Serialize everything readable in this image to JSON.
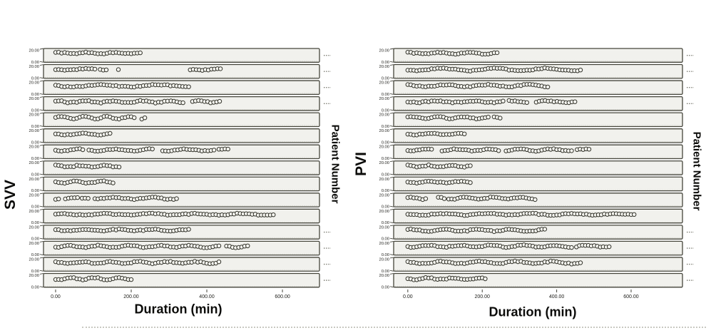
{
  "figure": {
    "background": "#ffffff",
    "description": "Two multi-panel strip plots of SVV and PVI values over anesthesia duration, one panel row per patient"
  },
  "colors": {
    "strip_fill": "#f1f1ed",
    "strip_border": "#45453b",
    "strip_inner_dotted": "#b4b4aa",
    "point_stroke": "#33332b",
    "point_fill": "#f6f6f1",
    "tick_text": "#1c1c18",
    "axis_label_text": "#0b0b09",
    "patient_tick_marks": "#78786e",
    "caption_rule": "#c9c9c2"
  },
  "chart_data": [
    {
      "type": "scatter",
      "panel": "left",
      "ylabel": "SVV",
      "right_axis_label": "Patient Number",
      "xlabel": "Duration (min)",
      "x_ticks": [
        0,
        200,
        400,
        600
      ],
      "x_tick_labels": [
        "0.00",
        "200.00",
        "400.00",
        "600.00"
      ],
      "x_range": [
        -32,
        698
      ],
      "strip_y_ticks": [
        "20.00",
        "0.00"
      ],
      "strip_y_range": [
        0,
        20
      ],
      "n_patients": 15,
      "point_step_min": 8,
      "jitter": 0.7,
      "visible_right_tick_rows": [
        1,
        2,
        3,
        4,
        12,
        13,
        14,
        15
      ],
      "series": [
        {
          "row": 1,
          "segments": [
            [
              0,
              230
            ]
          ],
          "y_base": 13.2,
          "y_amp": 0.9,
          "period": 70,
          "phase": 0.1
        },
        {
          "row": 2,
          "segments": [
            [
              0,
              108
            ],
            [
              118,
              136
            ],
            [
              166,
              170
            ],
            [
              356,
              437
            ]
          ],
          "y_base": 13.0,
          "y_amp": 1.1,
          "period": 120,
          "phase": 0.55
        },
        {
          "row": 3,
          "segments": [
            [
              0,
              352
            ]
          ],
          "y_base": 12.6,
          "y_amp": 1.6,
          "period": 150,
          "phase": 0.45
        },
        {
          "row": 4,
          "segments": [
            [
              0,
              296
            ],
            [
              305,
              343
            ],
            [
              362,
              437
            ]
          ],
          "y_base": 12.8,
          "y_amp": 1.4,
          "period": 75,
          "phase": 0.2
        },
        {
          "row": 5,
          "segments": [
            [
              0,
              212
            ],
            [
              228,
              242
            ]
          ],
          "y_base": 13.0,
          "y_amp": 1.8,
          "period": 60,
          "phase": 0.0
        },
        {
          "row": 6,
          "segments": [
            [
              0,
              145
            ]
          ],
          "y_base": 12.4,
          "y_amp": 1.0,
          "period": 80,
          "phase": 0.35
        },
        {
          "row": 7,
          "segments": [
            [
              0,
              72
            ],
            [
              88,
              258
            ],
            [
              283,
              419
            ],
            [
              432,
              462
            ]
          ],
          "y_base": 12.6,
          "y_amp": 1.3,
          "period": 95,
          "phase": 0.6
        },
        {
          "row": 8,
          "segments": [
            [
              0,
              168
            ]
          ],
          "y_base": 12.4,
          "y_amp": 1.2,
          "period": 65,
          "phase": 0.25
        },
        {
          "row": 9,
          "segments": [
            [
              0,
              155
            ]
          ],
          "y_base": 12.6,
          "y_amp": 1.4,
          "period": 70,
          "phase": 0.5
        },
        {
          "row": 10,
          "segments": [
            [
              0,
              14
            ],
            [
              26,
              58
            ],
            [
              70,
              92
            ],
            [
              104,
              325
            ]
          ],
          "y_base": 12.5,
          "y_amp": 1.2,
          "period": 100,
          "phase": 0.7
        },
        {
          "row": 11,
          "segments": [
            [
              0,
              580
            ]
          ],
          "y_base": 12.6,
          "y_amp": 1.0,
          "period": 120,
          "phase": 0.15
        },
        {
          "row": 12,
          "segments": [
            [
              0,
              353
            ]
          ],
          "y_base": 13.0,
          "y_amp": 0.9,
          "period": 90,
          "phase": 0.4
        },
        {
          "row": 13,
          "segments": [
            [
              0,
              438
            ],
            [
              452,
              510
            ]
          ],
          "y_base": 12.6,
          "y_amp": 1.4,
          "period": 80,
          "phase": 0.8
        },
        {
          "row": 14,
          "segments": [
            [
              0,
              437
            ]
          ],
          "y_base": 12.5,
          "y_amp": 1.2,
          "period": 75,
          "phase": 0.3
        },
        {
          "row": 15,
          "segments": [
            [
              0,
              202
            ]
          ],
          "y_base": 12.5,
          "y_amp": 1.5,
          "period": 65,
          "phase": 0.65
        }
      ]
    },
    {
      "type": "scatter",
      "panel": "right",
      "ylabel": "PVI",
      "right_axis_label": "Patient Number",
      "xlabel": "Duration (min)",
      "x_ticks": [
        0,
        200,
        400,
        600
      ],
      "x_tick_labels": [
        "0.00",
        "200.00",
        "400.00",
        "600.00"
      ],
      "x_range": [
        -38,
        738
      ],
      "strip_y_ticks": [
        "20.00",
        "0.00"
      ],
      "strip_y_range": [
        0,
        20
      ],
      "n_patients": 15,
      "point_step_min": 8,
      "jitter": 0.7,
      "visible_right_tick_rows": [
        1,
        2,
        3,
        4,
        12,
        13,
        14,
        15
      ],
      "series": [
        {
          "row": 1,
          "segments": [
            [
              0,
              244
            ]
          ],
          "y_base": 13.1,
          "y_amp": 0.9,
          "period": 80,
          "phase": 0.2
        },
        {
          "row": 2,
          "segments": [
            [
              0,
              466
            ]
          ],
          "y_base": 12.9,
          "y_amp": 1.8,
          "period": 140,
          "phase": 0.6
        },
        {
          "row": 3,
          "segments": [
            [
              0,
              377
            ]
          ],
          "y_base": 12.7,
          "y_amp": 1.4,
          "period": 110,
          "phase": 0.3
        },
        {
          "row": 4,
          "segments": [
            [
              0,
              263
            ],
            [
              272,
              326
            ],
            [
              345,
              453
            ]
          ],
          "y_base": 12.8,
          "y_amp": 1.1,
          "period": 100,
          "phase": 0.5
        },
        {
          "row": 5,
          "segments": [
            [
              0,
              219
            ],
            [
              232,
              252
            ]
          ],
          "y_base": 13.0,
          "y_amp": 1.3,
          "period": 70,
          "phase": 0.1
        },
        {
          "row": 6,
          "segments": [
            [
              0,
              154
            ]
          ],
          "y_base": 12.5,
          "y_amp": 0.9,
          "period": 75,
          "phase": 0.45
        },
        {
          "row": 7,
          "segments": [
            [
              0,
              64
            ],
            [
              92,
              250
            ],
            [
              264,
              442
            ],
            [
              455,
              487
            ]
          ],
          "y_base": 12.6,
          "y_amp": 1.3,
          "period": 85,
          "phase": 0.7
        },
        {
          "row": 8,
          "segments": [
            [
              0,
              173
            ]
          ],
          "y_base": 12.5,
          "y_amp": 1.2,
          "period": 60,
          "phase": 0.3
        },
        {
          "row": 9,
          "segments": [
            [
              0,
              168
            ]
          ],
          "y_base": 12.6,
          "y_amp": 1.0,
          "period": 85,
          "phase": 0.55
        },
        {
          "row": 10,
          "segments": [
            [
              0,
              48
            ],
            [
              82,
              98
            ],
            [
              110,
              345
            ]
          ],
          "y_base": 12.6,
          "y_amp": 1.4,
          "period": 75,
          "phase": 0.2
        },
        {
          "row": 11,
          "segments": [
            [
              0,
              611
            ]
          ],
          "y_base": 12.6,
          "y_amp": 1.1,
          "period": 115,
          "phase": 0.4
        },
        {
          "row": 12,
          "segments": [
            [
              0,
              373
            ]
          ],
          "y_base": 12.7,
          "y_amp": 1.4,
          "period": 90,
          "phase": 0.15
        },
        {
          "row": 13,
          "segments": [
            [
              0,
              447
            ],
            [
              453,
              543
            ]
          ],
          "y_base": 13.0,
          "y_amp": 1.4,
          "period": 85,
          "phase": 0.6
        },
        {
          "row": 14,
          "segments": [
            [
              0,
              466
            ]
          ],
          "y_base": 12.6,
          "y_amp": 1.6,
          "period": 100,
          "phase": 0.35
        },
        {
          "row": 15,
          "segments": [
            [
              0,
              211
            ]
          ],
          "y_base": 12.5,
          "y_amp": 1.2,
          "period": 70,
          "phase": 0.5
        }
      ]
    }
  ]
}
